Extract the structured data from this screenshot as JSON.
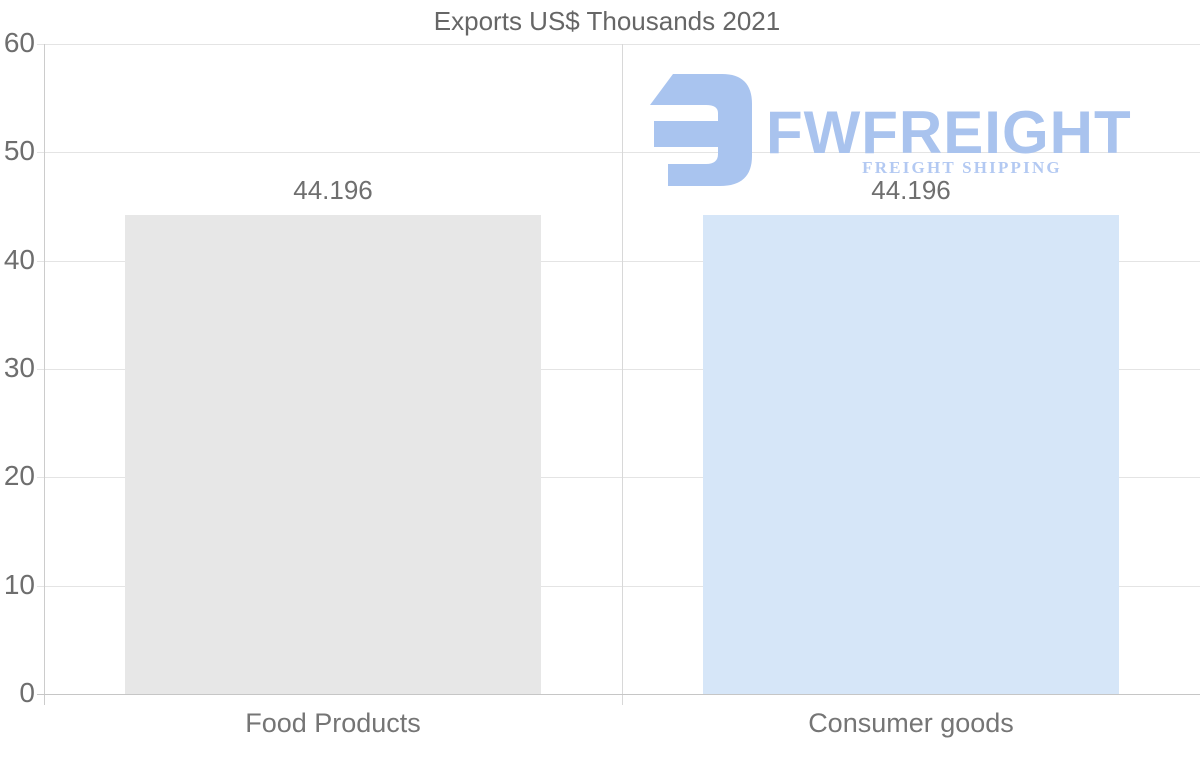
{
  "chart_data": {
    "type": "bar",
    "title": "Exports US$ Thousands 2021",
    "categories": [
      "Food Products",
      "Consumer goods"
    ],
    "values": [
      44.196,
      44.196
    ],
    "value_labels": [
      "44.196",
      "44.196"
    ],
    "bar_colors": [
      "#e7e7e7",
      "#d6e6f8"
    ],
    "xlabel": "",
    "ylabel": "",
    "ylim": [
      0,
      60
    ],
    "yticks": [
      0,
      10,
      20,
      30,
      40,
      50,
      60
    ],
    "grid": "horizontal gridlines with vertical category dividers",
    "legend": "none",
    "title_color": "#666666",
    "text_color": "#757575"
  },
  "watermark": {
    "brand": "FWFREIGHT",
    "tagline": "FREIGHT SHIPPING",
    "brand_color": "#a9c3ee",
    "tagline_color": "#b3c9f2",
    "icon_color": "#a9c4ef"
  }
}
